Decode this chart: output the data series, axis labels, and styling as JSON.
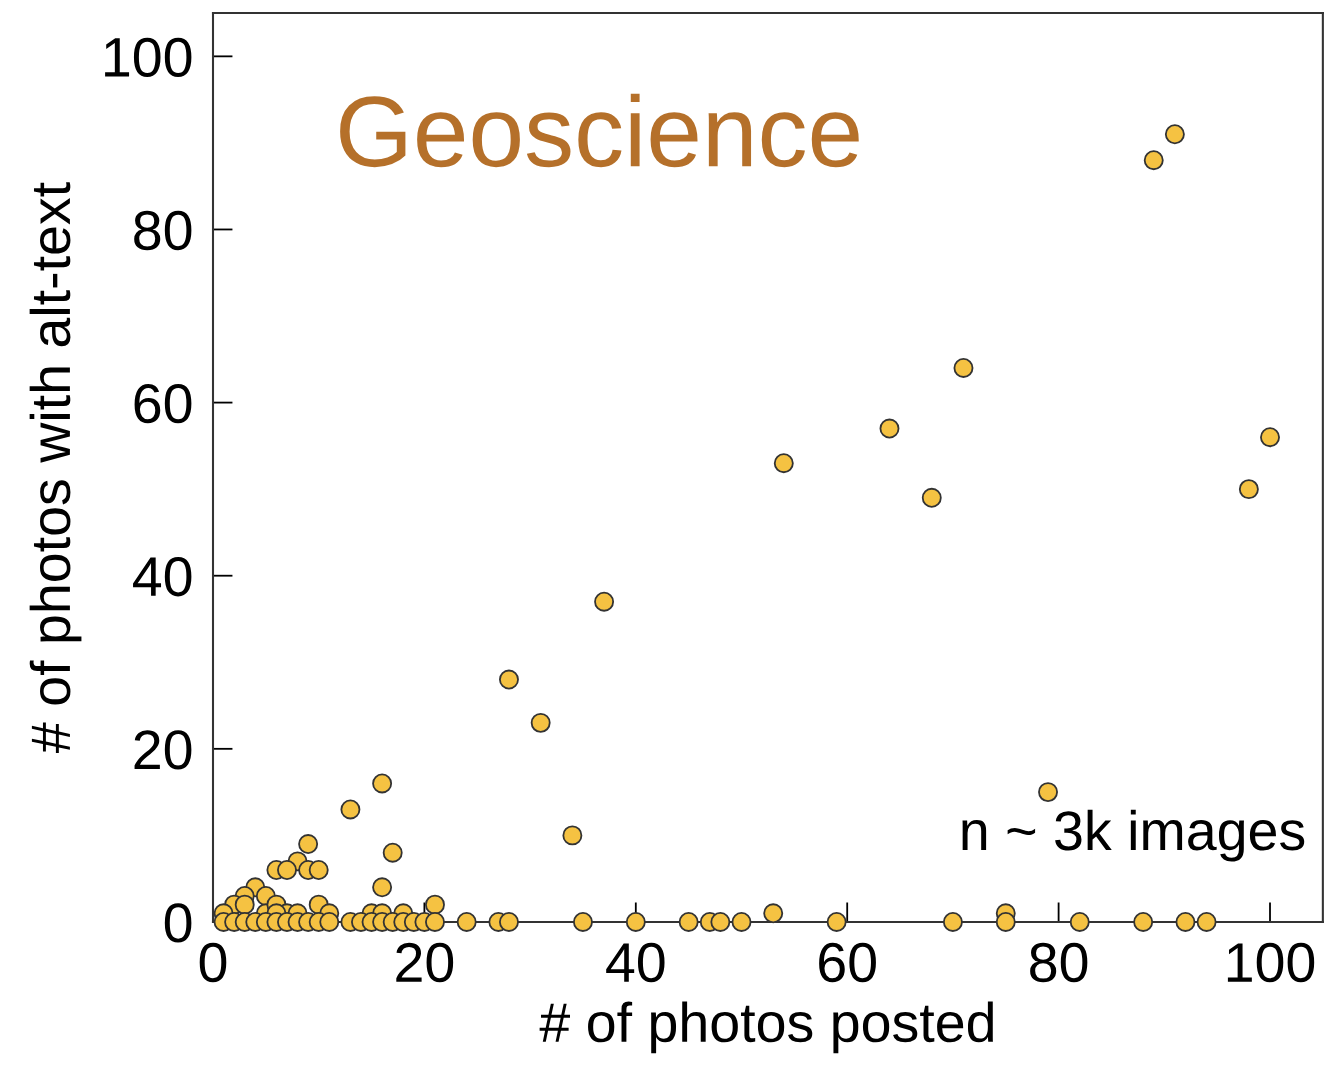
{
  "chart_data": {
    "type": "scatter",
    "title": "Geoscience",
    "xlabel": "# of photos posted",
    "ylabel": "# of photos with alt-text",
    "annotations": [
      "n ~ 3k images"
    ],
    "series": [
      {
        "color": "#f5c242",
        "x": [
          89,
          91,
          71,
          64,
          54,
          68,
          98,
          100,
          37,
          28,
          31,
          34,
          16,
          13,
          79,
          17,
          16,
          9,
          8,
          6,
          7,
          9,
          10,
          4,
          3,
          5,
          2,
          3,
          10,
          21,
          11,
          1,
          5,
          6,
          7,
          8,
          15,
          16,
          18,
          53,
          75,
          6,
          1,
          2,
          3,
          4,
          5,
          6,
          7,
          8,
          9,
          10,
          11,
          13,
          14,
          15,
          16,
          17,
          18,
          19,
          20,
          21,
          24,
          27,
          28,
          35,
          40,
          45,
          47,
          48,
          50,
          59,
          70,
          75,
          82,
          88,
          92,
          94
        ],
        "values": [
          88,
          91,
          64,
          57,
          53,
          49,
          50,
          56,
          37,
          28,
          23,
          10,
          16,
          13,
          15,
          8,
          4,
          9,
          7,
          6,
          6,
          6,
          6,
          4,
          3,
          3,
          2,
          2,
          2,
          2,
          1,
          1,
          1,
          2,
          1,
          1,
          1,
          1,
          1,
          1,
          1,
          1,
          0,
          0,
          0,
          0,
          0,
          0,
          0,
          0,
          0,
          0,
          0,
          0,
          0,
          0,
          0,
          0,
          0,
          0,
          0,
          0,
          0,
          0,
          0,
          0,
          0,
          0,
          0,
          0,
          0,
          0,
          0,
          0,
          0,
          0,
          0,
          0
        ]
      }
    ],
    "marker": "circle",
    "xlim": [
      0,
      105
    ],
    "ylim": [
      0,
      105
    ],
    "xticks": [
      0,
      20,
      40,
      60,
      80,
      100
    ],
    "yticks": [
      0,
      20,
      40,
      60,
      80,
      100
    ],
    "grid": false,
    "legend": false
  }
}
